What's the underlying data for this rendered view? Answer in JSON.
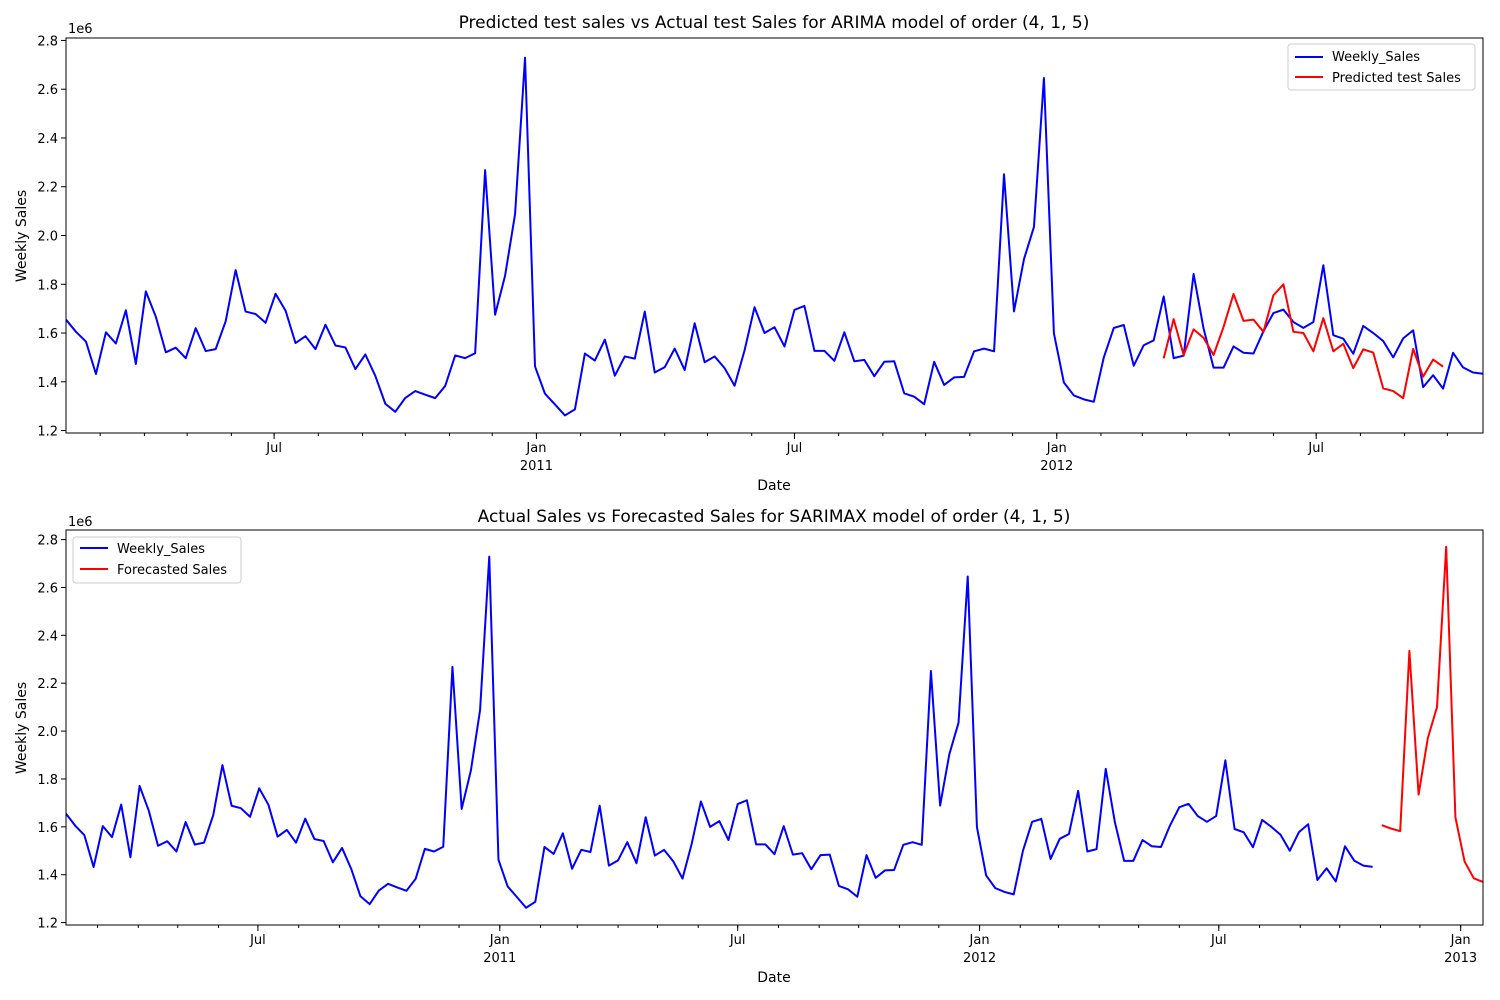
{
  "chart_data": [
    {
      "type": "line",
      "title": "Predicted test sales vs Actual test Sales for ARIMA model of order (4, 1, 5)",
      "xlabel": "Date",
      "ylabel": "Weekly Sales",
      "y_offset_label": "1e6",
      "ylim": [
        1.19,
        2.81
      ],
      "xlim": [
        "2010-02-05",
        "2012-10-26"
      ],
      "yticks": [
        "1.2",
        "1.4",
        "1.6",
        "1.8",
        "2.0",
        "2.2",
        "2.4",
        "2.6",
        "2.8"
      ],
      "xticks": [
        {
          "date": "2010-07-01",
          "label": "Jul",
          "sub": ""
        },
        {
          "date": "2011-01-01",
          "label": "Jan",
          "sub": "2011"
        },
        {
          "date": "2011-07-01",
          "label": "Jul",
          "sub": ""
        },
        {
          "date": "2012-01-01",
          "label": "Jan",
          "sub": "2012"
        },
        {
          "date": "2012-07-01",
          "label": "Jul",
          "sub": ""
        }
      ],
      "legend_position": "top-right",
      "series": [
        {
          "name": "Weekly_Sales",
          "color": "#0000ff",
          "start": "2010-02-05",
          "values": [
            1.655,
            1.605,
            1.565,
            1.432,
            1.603,
            1.557,
            1.693,
            1.473,
            1.771,
            1.667,
            1.521,
            1.54,
            1.497,
            1.62,
            1.526,
            1.534,
            1.648,
            1.858,
            1.688,
            1.678,
            1.642,
            1.761,
            1.692,
            1.559,
            1.587,
            1.534,
            1.634,
            1.549,
            1.541,
            1.452,
            1.512,
            1.424,
            1.31,
            1.277,
            1.334,
            1.362,
            1.347,
            1.333,
            1.383,
            1.508,
            1.497,
            1.517,
            2.268,
            1.675,
            1.835,
            2.087,
            2.729,
            1.463,
            1.351,
            1.307,
            1.262,
            1.287,
            1.516,
            1.487,
            1.573,
            1.425,
            1.504,
            1.495,
            1.688,
            1.438,
            1.46,
            1.536,
            1.448,
            1.64,
            1.48,
            1.504,
            1.456,
            1.384,
            1.529,
            1.706,
            1.6,
            1.624,
            1.545,
            1.695,
            1.711,
            1.527,
            1.527,
            1.486,
            1.603,
            1.484,
            1.49,
            1.423,
            1.482,
            1.484,
            1.353,
            1.339,
            1.308,
            1.482,
            1.387,
            1.418,
            1.42,
            1.525,
            1.536,
            1.525,
            2.251,
            1.689,
            1.903,
            2.035,
            2.646,
            1.599,
            1.397,
            1.344,
            1.328,
            1.318,
            1.5,
            1.621,
            1.633,
            1.466,
            1.55,
            1.57,
            1.75,
            1.497,
            1.507,
            1.842,
            1.618,
            1.458,
            1.458,
            1.545,
            1.519,
            1.516,
            1.607,
            1.682,
            1.696,
            1.645,
            1.621,
            1.645,
            1.878,
            1.591,
            1.577,
            1.515,
            1.629,
            1.6,
            1.567,
            1.5,
            1.578,
            1.611,
            1.378,
            1.427,
            1.372,
            1.519,
            1.459,
            1.438,
            1.433
          ]
        },
        {
          "name": "Predicted test Sales",
          "color": "#ff0000",
          "start": "2012-03-16",
          "values": [
            1.496,
            1.657,
            1.51,
            1.615,
            1.58,
            1.51,
            1.625,
            1.76,
            1.65,
            1.655,
            1.605,
            1.755,
            1.8,
            1.605,
            1.6,
            1.525,
            1.661,
            1.525,
            1.556,
            1.456,
            1.533,
            1.52,
            1.373,
            1.362,
            1.333,
            1.535,
            1.421,
            1.491,
            1.462
          ]
        }
      ]
    },
    {
      "type": "line",
      "title": "Actual Sales vs Forecasted Sales for SARIMAX model of order (4, 1, 5)",
      "xlabel": "Date",
      "ylabel": "Weekly Sales",
      "y_offset_label": "1e6",
      "ylim": [
        1.19,
        2.84
      ],
      "xlim": [
        "2010-02-05",
        "2013-01-18"
      ],
      "yticks": [
        "1.2",
        "1.4",
        "1.6",
        "1.8",
        "2.0",
        "2.2",
        "2.4",
        "2.6",
        "2.8"
      ],
      "xticks": [
        {
          "date": "2010-07-01",
          "label": "Jul",
          "sub": ""
        },
        {
          "date": "2011-01-01",
          "label": "Jan",
          "sub": "2011"
        },
        {
          "date": "2011-07-01",
          "label": "Jul",
          "sub": ""
        },
        {
          "date": "2012-01-01",
          "label": "Jan",
          "sub": "2012"
        },
        {
          "date": "2012-07-01",
          "label": "Jul",
          "sub": ""
        },
        {
          "date": "2013-01-01",
          "label": "Jan",
          "sub": "2013"
        }
      ],
      "legend_position": "top-left",
      "series": [
        {
          "name": "Weekly_Sales",
          "color": "#0000ff",
          "start": "2010-02-05",
          "values": [
            1.655,
            1.605,
            1.565,
            1.432,
            1.603,
            1.557,
            1.693,
            1.473,
            1.771,
            1.667,
            1.521,
            1.54,
            1.497,
            1.62,
            1.526,
            1.534,
            1.648,
            1.858,
            1.688,
            1.678,
            1.642,
            1.761,
            1.692,
            1.559,
            1.587,
            1.534,
            1.634,
            1.549,
            1.541,
            1.452,
            1.512,
            1.424,
            1.31,
            1.277,
            1.334,
            1.362,
            1.347,
            1.333,
            1.383,
            1.508,
            1.497,
            1.517,
            2.268,
            1.675,
            1.835,
            2.087,
            2.729,
            1.463,
            1.351,
            1.307,
            1.262,
            1.287,
            1.516,
            1.487,
            1.573,
            1.425,
            1.504,
            1.495,
            1.688,
            1.438,
            1.46,
            1.536,
            1.448,
            1.64,
            1.48,
            1.504,
            1.456,
            1.384,
            1.529,
            1.706,
            1.6,
            1.624,
            1.545,
            1.695,
            1.711,
            1.527,
            1.527,
            1.486,
            1.603,
            1.484,
            1.49,
            1.423,
            1.482,
            1.484,
            1.353,
            1.339,
            1.308,
            1.482,
            1.387,
            1.418,
            1.42,
            1.525,
            1.536,
            1.525,
            2.251,
            1.689,
            1.903,
            2.035,
            2.646,
            1.599,
            1.397,
            1.344,
            1.328,
            1.318,
            1.5,
            1.621,
            1.633,
            1.466,
            1.55,
            1.57,
            1.75,
            1.497,
            1.507,
            1.842,
            1.618,
            1.458,
            1.458,
            1.545,
            1.519,
            1.516,
            1.607,
            1.682,
            1.696,
            1.645,
            1.621,
            1.645,
            1.878,
            1.591,
            1.577,
            1.515,
            1.629,
            1.6,
            1.567,
            1.5,
            1.578,
            1.611,
            1.378,
            1.427,
            1.372,
            1.519,
            1.459,
            1.438,
            1.433
          ]
        },
        {
          "name": "Forecasted Sales",
          "color": "#ff0000",
          "start": "2012-11-02",
          "values": [
            1.607,
            1.593,
            1.582,
            2.335,
            1.735,
            1.97,
            2.1,
            2.77,
            1.64,
            1.455,
            1.385,
            1.37
          ]
        }
      ]
    }
  ]
}
